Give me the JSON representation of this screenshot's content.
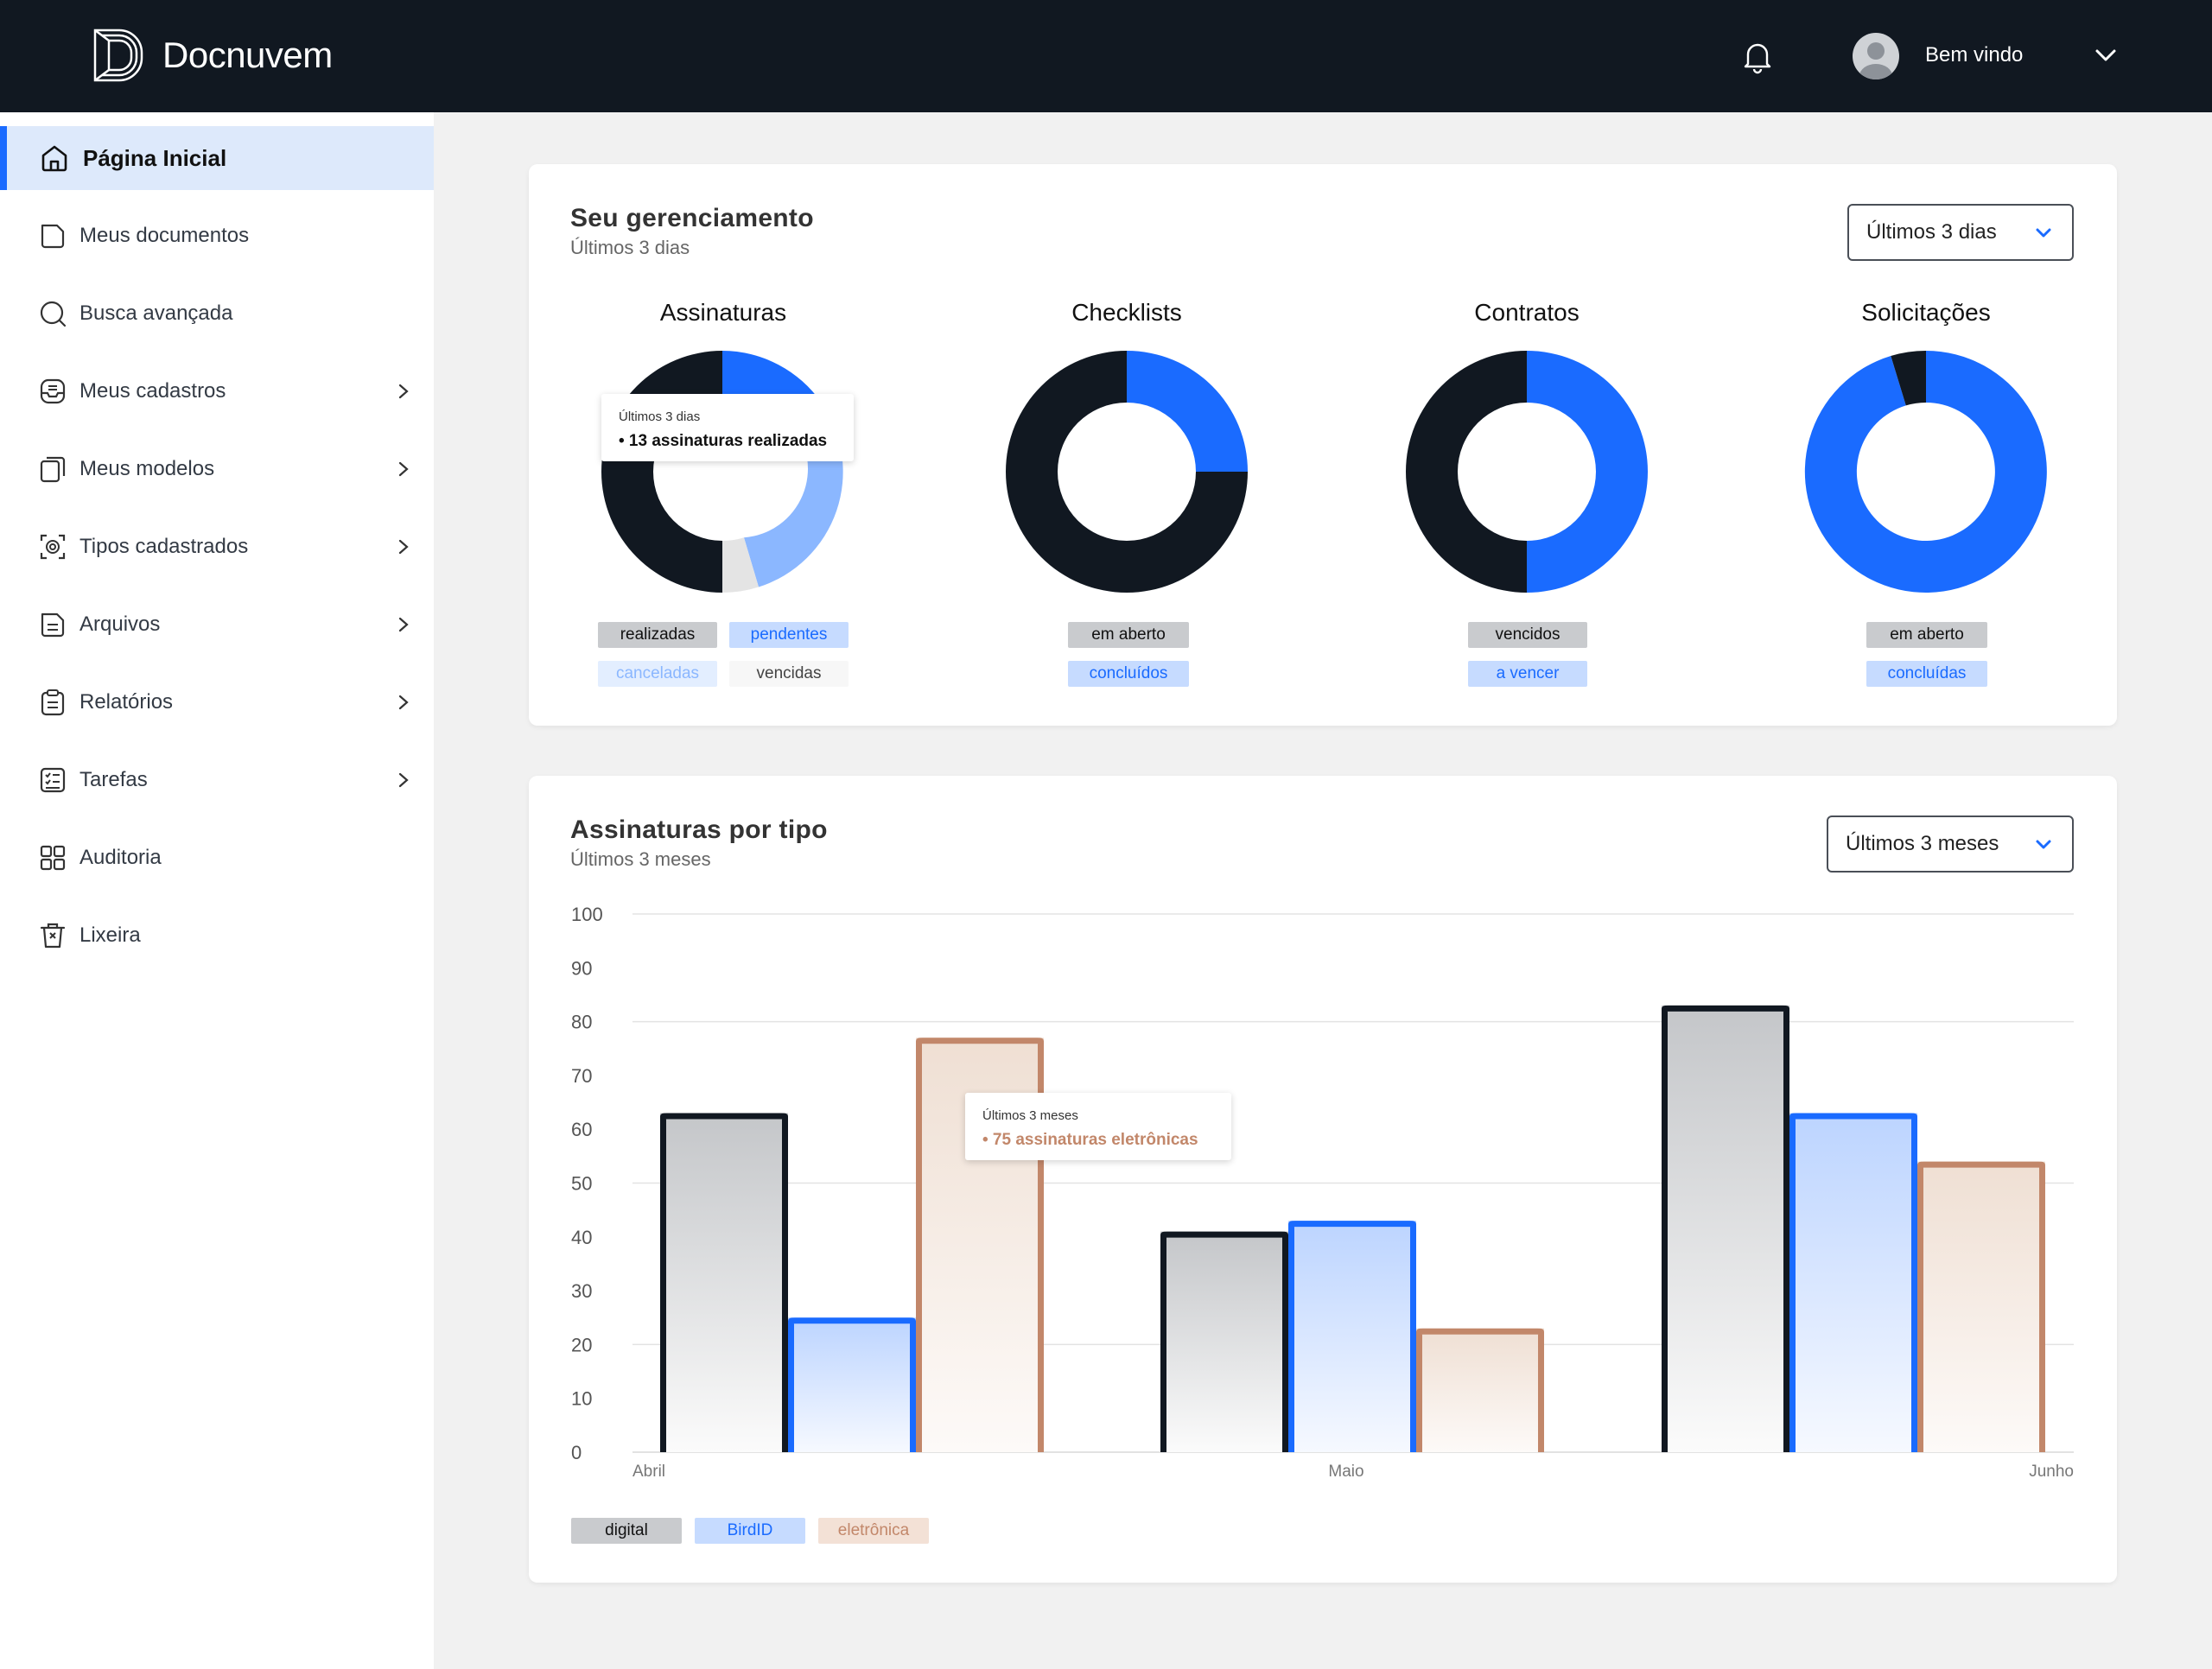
{
  "header": {
    "brand": "Docnuvem",
    "welcome": "Bem vindo"
  },
  "sidebar": {
    "items": [
      {
        "label": "Página Inicial",
        "icon": "home-icon",
        "active": true
      },
      {
        "label": "Meus documentos",
        "icon": "document-icon"
      },
      {
        "label": "Busca avançada",
        "icon": "search-icon"
      },
      {
        "label": "Meus cadastros",
        "icon": "inbox-icon",
        "expandable": true
      },
      {
        "label": "Meus modelos",
        "icon": "copy-icon",
        "expandable": true
      },
      {
        "label": "Tipos cadastrados",
        "icon": "fingerprint-icon",
        "expandable": true
      },
      {
        "label": "Arquivos",
        "icon": "file-icon",
        "expandable": true
      },
      {
        "label": "Relatórios",
        "icon": "clipboard-icon",
        "expandable": true
      },
      {
        "label": "Tarefas",
        "icon": "checklist-icon",
        "expandable": true
      },
      {
        "label": "Auditoria",
        "icon": "grid-icon"
      },
      {
        "label": "Lixeira",
        "icon": "trash-icon"
      }
    ]
  },
  "management": {
    "title": "Seu gerenciamento",
    "subtitle": "Últimos 3 dias",
    "select": "Últimos 3 dias",
    "donuts": [
      {
        "title": "Assinaturas",
        "legend": [
          "realizadas",
          "pendentes",
          "canceladas",
          "vencidas"
        ]
      },
      {
        "title": "Checklists",
        "legend": [
          "em aberto",
          "concluídos"
        ]
      },
      {
        "title": "Contratos",
        "legend": [
          "vencidos",
          "a vencer"
        ]
      },
      {
        "title": "Solicitações",
        "legend": [
          "em aberto",
          "concluídas"
        ]
      }
    ],
    "tooltip": {
      "head": "Últimos 3 dias",
      "body": "• 13 assinaturas realizadas"
    }
  },
  "signatures": {
    "title": "Assinaturas por tipo",
    "subtitle": "Últimos 3 meses",
    "select": "Últimos 3 meses",
    "tooltip": {
      "head": "Últimos 3 meses",
      "body": "• 75 assinaturas eletrônicas"
    }
  },
  "chart_data": {
    "type": "bar",
    "categories": [
      "Abril",
      "Maio",
      "Junho"
    ],
    "series": [
      {
        "name": "digital",
        "values": [
          63,
          41,
          83
        ]
      },
      {
        "name": "BirdID",
        "values": [
          25,
          43,
          63
        ]
      },
      {
        "name": "eletrônica",
        "values": [
          77,
          23,
          54
        ]
      }
    ],
    "ylim": [
      0,
      100
    ],
    "yticks": [
      "100",
      "90",
      "80",
      "70",
      "60",
      "50",
      "40",
      "30",
      "20",
      "10",
      "0"
    ],
    "legend_position": "bottom-left",
    "colors": {
      "digital": "#111821",
      "BirdID": "#1a6bff",
      "eletrônica": "#c2876a"
    }
  },
  "colors": {
    "dark": "#111821",
    "blue": "#1a6bff",
    "light_blue": "#8bb7ff",
    "gray_slice": "#e4e4e4"
  }
}
